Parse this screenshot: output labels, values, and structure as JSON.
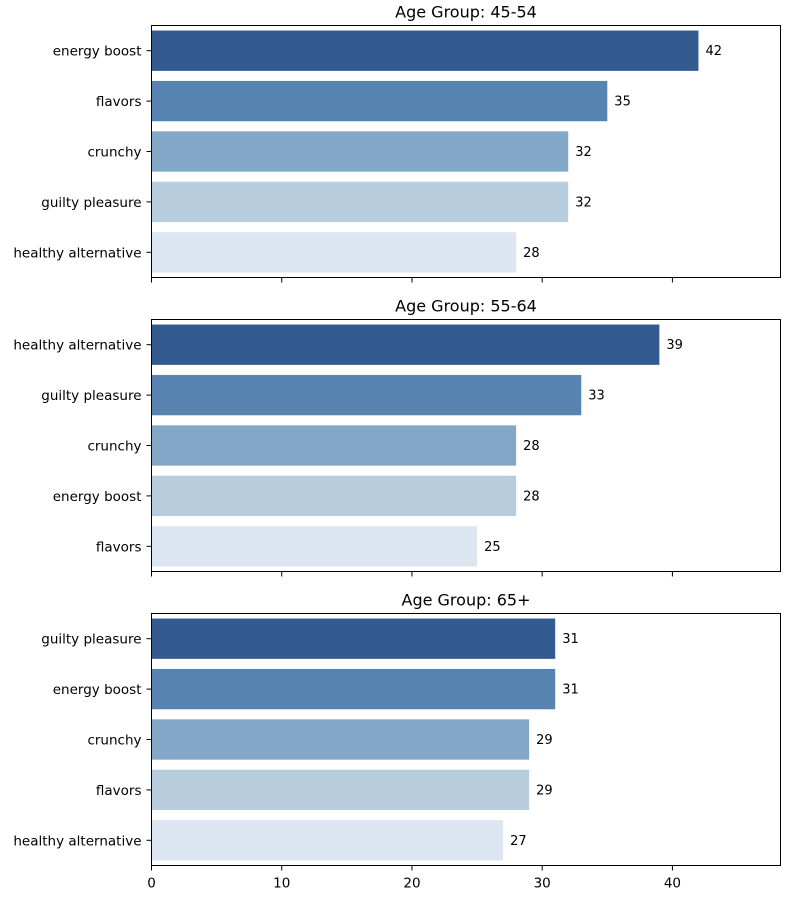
{
  "colors": {
    "bars": [
      "#345b8f",
      "#5683b0",
      "#83a8c7",
      "#b7cddd",
      "#dce6f0"
    ],
    "frame": "#000000",
    "text": "#000000"
  },
  "chart_data": [
    {
      "type": "bar",
      "orientation": "horizontal",
      "title": "Age Group: 45-54",
      "categories": [
        "energy boost",
        "flavors",
        "crunchy",
        "guilty pleasure",
        "healthy alternative"
      ],
      "values": [
        42,
        35,
        32,
        32,
        28
      ],
      "xlim": [
        0,
        48.3
      ],
      "grid": false
    },
    {
      "type": "bar",
      "orientation": "horizontal",
      "title": "Age Group: 55-64",
      "categories": [
        "healthy alternative",
        "guilty pleasure",
        "crunchy",
        "energy boost",
        "flavors"
      ],
      "values": [
        39,
        33,
        28,
        28,
        25
      ],
      "xlim": [
        0,
        48.3
      ],
      "grid": false
    },
    {
      "type": "bar",
      "orientation": "horizontal",
      "title": "Age Group: 65+",
      "categories": [
        "guilty pleasure",
        "energy boost",
        "crunchy",
        "flavors",
        "healthy alternative"
      ],
      "values": [
        31,
        31,
        29,
        29,
        27
      ],
      "xlim": [
        0,
        48.3
      ],
      "xticks": [
        0,
        10,
        20,
        30,
        40
      ],
      "grid": false
    }
  ]
}
